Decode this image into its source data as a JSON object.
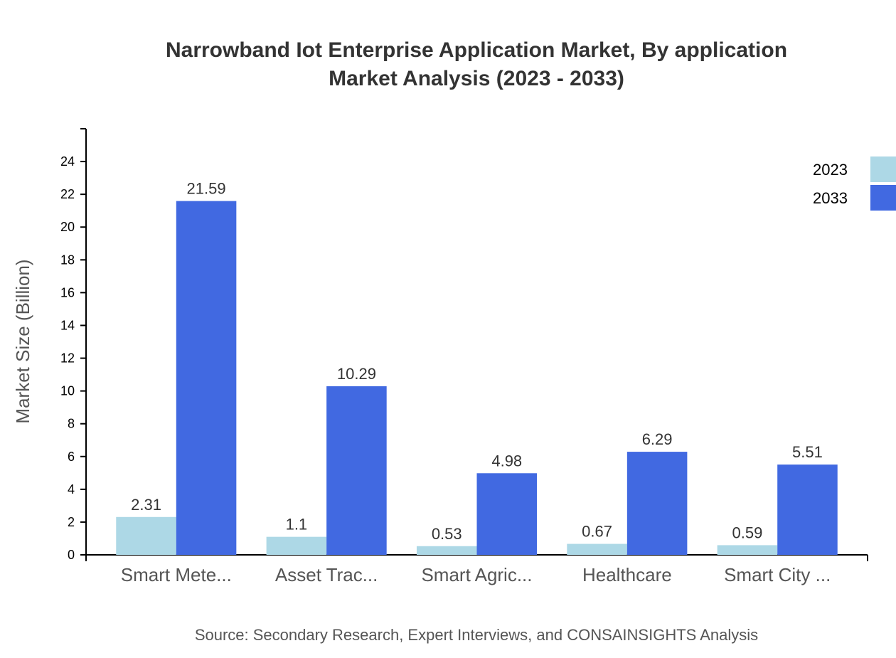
{
  "chart_data": {
    "type": "bar",
    "title": "Narrowband Iot Enterprise Application Market, By application",
    "subtitle": "Market Analysis (2023 - 2033)",
    "ylabel": "Market Size (Billion)",
    "xlabel": "",
    "ylim": [
      0,
      26
    ],
    "yticks": [
      0,
      2,
      4,
      6,
      8,
      10,
      12,
      14,
      16,
      18,
      20,
      22,
      24
    ],
    "grid": false,
    "legend_position": "top-right",
    "categories": [
      "Smart Mete...",
      "Asset Trac...",
      "Smart Agric...",
      "Healthcare",
      "Smart City ..."
    ],
    "series": [
      {
        "name": "2023",
        "color": "#add8e6",
        "values": [
          2.31,
          1.1,
          0.53,
          0.67,
          0.59
        ]
      },
      {
        "name": "2033",
        "color": "#4169e1",
        "values": [
          21.59,
          10.29,
          4.98,
          6.29,
          5.51
        ]
      }
    ],
    "source": "Source: Secondary Research, Expert Interviews, and CONSAINSIGHTS Analysis"
  }
}
